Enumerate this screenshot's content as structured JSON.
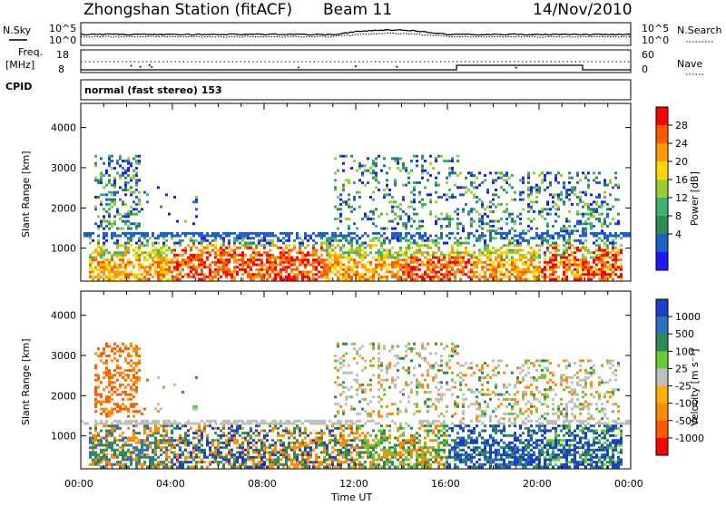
{
  "header": {
    "station": "Zhongshan Station (fitACF)",
    "beam": "Beam 11",
    "date": "14/Nov/2010"
  },
  "strip": {
    "nsky_label": "N.Sky",
    "nsearch_label": "N.Search",
    "noise_ticks": [
      "10^5",
      "10^0"
    ],
    "freq_label": "Freq.",
    "freq_unit": "[MHz]",
    "freq_ticks": [
      "18",
      "8"
    ],
    "nave_label": "Nave",
    "nave_ticks": [
      "60",
      "0"
    ],
    "cpid_label": "CPID",
    "cpid_text": "normal (fast stereo) 153"
  },
  "chart_data": [
    {
      "type": "heatmap",
      "quantity": "power",
      "ylabel": "Slant Range [km]",
      "yticks": [
        1000,
        2000,
        3000,
        4000
      ],
      "ylim": [
        180,
        4600
      ],
      "xlim": [
        0,
        24
      ],
      "colorbar": {
        "label": "Power [dB]",
        "ticks": [
          "28",
          "24",
          "20",
          "16",
          "12",
          "8",
          "4"
        ],
        "colors": [
          "#ff0000",
          "#ff5a00",
          "#ff9a00",
          "#ffd700",
          "#9acd32",
          "#3cb371",
          "#2e8b57",
          "#1e60c8",
          "#1a1aff"
        ]
      }
    },
    {
      "type": "heatmap",
      "quantity": "velocity",
      "ylabel": "Slant Range [km]",
      "yticks": [
        1000,
        2000,
        3000,
        4000
      ],
      "ylim": [
        180,
        4600
      ],
      "xlim": [
        0,
        24
      ],
      "colorbar": {
        "label": "Velocity [m s⁻¹]",
        "ticks": [
          "1000",
          "500",
          "100",
          "25",
          "-25",
          "-100",
          "-500",
          "-1000"
        ],
        "colors": [
          "#1a3fc8",
          "#2e6fc0",
          "#2e8b57",
          "#66cc33",
          "#bebebe",
          "#ffb000",
          "#ff8c00",
          "#ff5a00",
          "#ff0000"
        ]
      }
    }
  ],
  "time_axis": {
    "label": "Time UT",
    "ticks": [
      "00:00",
      "04:00",
      "08:00",
      "12:00",
      "16:00",
      "20:00",
      "00:00"
    ]
  }
}
